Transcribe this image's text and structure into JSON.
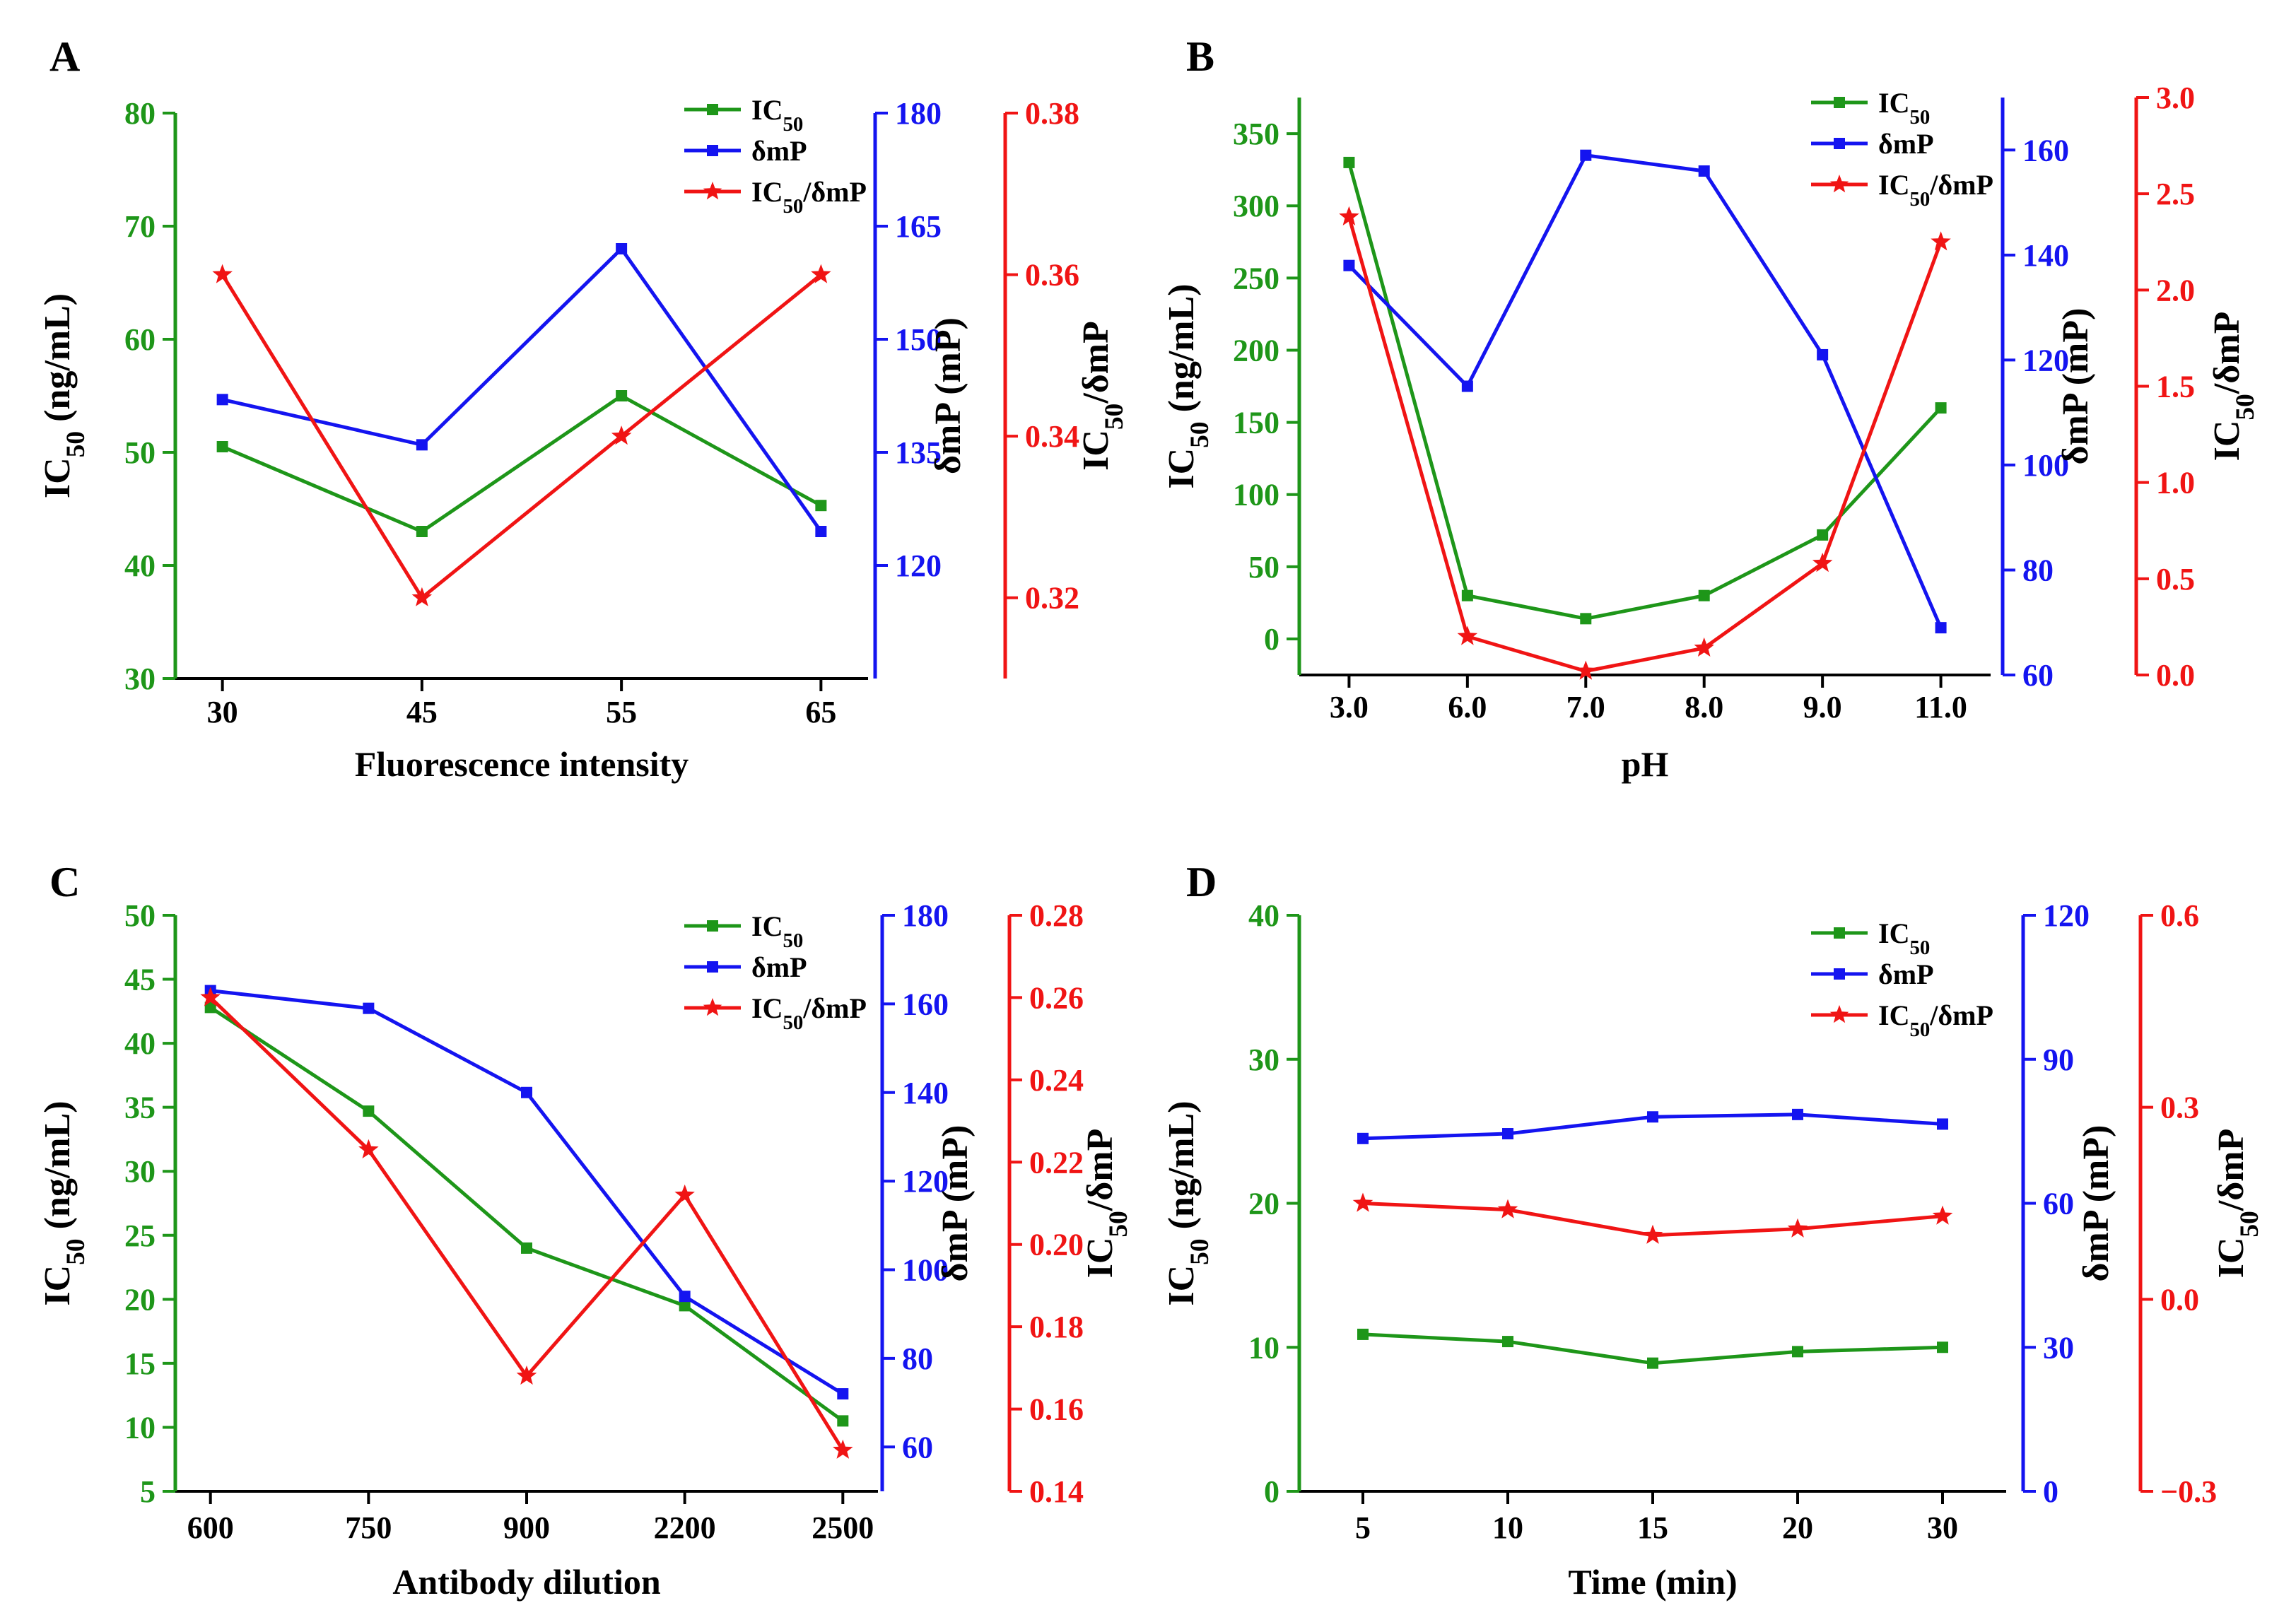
{
  "colors": {
    "ic50": "#1e9619",
    "dmp": "#1414f0",
    "ratio": "#f01414",
    "axis": "#000000"
  },
  "chart_data": [
    {
      "panel": "A",
      "type": "line",
      "xlabel": "Fluorescence intensity",
      "categories": [
        "30",
        "45",
        "55",
        "65"
      ],
      "legend": [
        "IC50",
        "δmP",
        "IC50/δmP"
      ],
      "legend_position": "top-right",
      "series": [
        {
          "name": "IC50",
          "axis": "y1",
          "values": [
            50.5,
            43,
            55,
            45.3
          ]
        },
        {
          "name": "δmP",
          "axis": "y2",
          "values": [
            142,
            136,
            162,
            124.5
          ]
        },
        {
          "name": "IC50/δmP",
          "axis": "y3",
          "values": [
            0.36,
            0.32,
            0.34,
            0.36
          ]
        }
      ],
      "axes": {
        "y1": {
          "label": "IC50 (ng/mL)",
          "range": [
            30,
            80
          ],
          "ticks": [
            "30",
            "40",
            "50",
            "60",
            "70",
            "80"
          ]
        },
        "y2": {
          "label": "δmP (mP)",
          "range": [
            105,
            180
          ],
          "ticks": [
            "120",
            "135",
            "150",
            "165",
            "180"
          ]
        },
        "y3": {
          "label": "IC50/δmP",
          "range": [
            0.31,
            0.38
          ],
          "ticks": [
            "0.32",
            "0.34",
            "0.36",
            "0.38"
          ]
        }
      }
    },
    {
      "panel": "B",
      "type": "line",
      "xlabel": "pH",
      "categories": [
        "3.0",
        "6.0",
        "7.0",
        "8.0",
        "9.0",
        "11.0"
      ],
      "legend": [
        "IC50",
        "δmP",
        "IC50/δmP"
      ],
      "legend_position": "top-right",
      "series": [
        {
          "name": "IC50",
          "axis": "y1",
          "values": [
            330,
            30,
            14,
            30,
            72,
            160
          ]
        },
        {
          "name": "δmP",
          "axis": "y2",
          "values": [
            138,
            115,
            159,
            156,
            121,
            69
          ]
        },
        {
          "name": "IC50/δmP",
          "axis": "y3",
          "values": [
            2.38,
            0.2,
            0.02,
            0.14,
            0.58,
            2.25
          ]
        }
      ],
      "axes": {
        "y1": {
          "label": "IC50 (ng/mL)",
          "range": [
            -25,
            375
          ],
          "ticks": [
            "0",
            "50",
            "100",
            "150",
            "200",
            "250",
            "300",
            "350"
          ]
        },
        "y2": {
          "label": "δmP (mP)",
          "range": [
            60,
            170
          ],
          "ticks": [
            "60",
            "80",
            "100",
            "120",
            "140",
            "160"
          ]
        },
        "y3": {
          "label": "IC50/δmP",
          "range": [
            0,
            3
          ],
          "ticks": [
            "0.0",
            "0.5",
            "1.0",
            "1.5",
            "2.0",
            "2.5",
            "3.0"
          ]
        }
      }
    },
    {
      "panel": "C",
      "type": "line",
      "xlabel": "Antibody dilution",
      "categories": [
        "600",
        "750",
        "900",
        "2200",
        "2500"
      ],
      "legend": [
        "IC50",
        "δmP",
        "IC50/δmP"
      ],
      "legend_position": "top-right",
      "series": [
        {
          "name": "IC50",
          "axis": "y1",
          "values": [
            42.8,
            34.7,
            24,
            19.5,
            10.5
          ]
        },
        {
          "name": "δmP",
          "axis": "y2",
          "values": [
            163,
            159,
            140,
            94,
            72
          ]
        },
        {
          "name": "IC50/δmP",
          "axis": "y3",
          "values": [
            0.26,
            0.223,
            0.168,
            0.212,
            0.15
          ]
        }
      ],
      "axes": {
        "y1": {
          "label": "IC50 (ng/mL)",
          "range": [
            5,
            50
          ],
          "ticks": [
            "5",
            "10",
            "15",
            "20",
            "25",
            "30",
            "35",
            "40",
            "45",
            "50"
          ]
        },
        "y2": {
          "label": "δmP (mP)",
          "range": [
            50,
            180
          ],
          "ticks": [
            "60",
            "80",
            "100",
            "120",
            "140",
            "160",
            "180"
          ]
        },
        "y3": {
          "label": "IC50/δmP",
          "range": [
            0.14,
            0.28
          ],
          "ticks": [
            "0.14",
            "0.16",
            "0.18",
            "0.20",
            "0.22",
            "0.24",
            "0.26",
            "0.28"
          ]
        }
      }
    },
    {
      "panel": "D",
      "type": "line",
      "xlabel": "Time (min)",
      "categories": [
        "5",
        "10",
        "15",
        "20",
        "30"
      ],
      "legend": [
        "IC50",
        "δmP",
        "IC50/δmP"
      ],
      "legend_position": "top-right",
      "series": [
        {
          "name": "IC50",
          "axis": "y1",
          "values": [
            10.9,
            10.4,
            8.9,
            9.7,
            10
          ]
        },
        {
          "name": "δmP",
          "axis": "y2",
          "values": [
            73.5,
            74.5,
            78,
            78.5,
            76.5
          ]
        },
        {
          "name": "IC50/δmP",
          "axis": "y3",
          "values": [
            0.15,
            0.14,
            0.1,
            0.11,
            0.13
          ]
        }
      ],
      "axes": {
        "y1": {
          "label": "IC50 (ng/mL)",
          "range": [
            0,
            40
          ],
          "ticks": [
            "0",
            "10",
            "20",
            "30",
            "40"
          ]
        },
        "y2": {
          "label": "δmP (mP)",
          "range": [
            0,
            120
          ],
          "ticks": [
            "0",
            "30",
            "60",
            "90",
            "120"
          ]
        },
        "y3": {
          "label": "IC50/δmP",
          "range": [
            -0.3,
            0.6
          ],
          "ticks": [
            "−0.3",
            "0.0",
            "0.3",
            "0.6"
          ]
        }
      }
    }
  ]
}
